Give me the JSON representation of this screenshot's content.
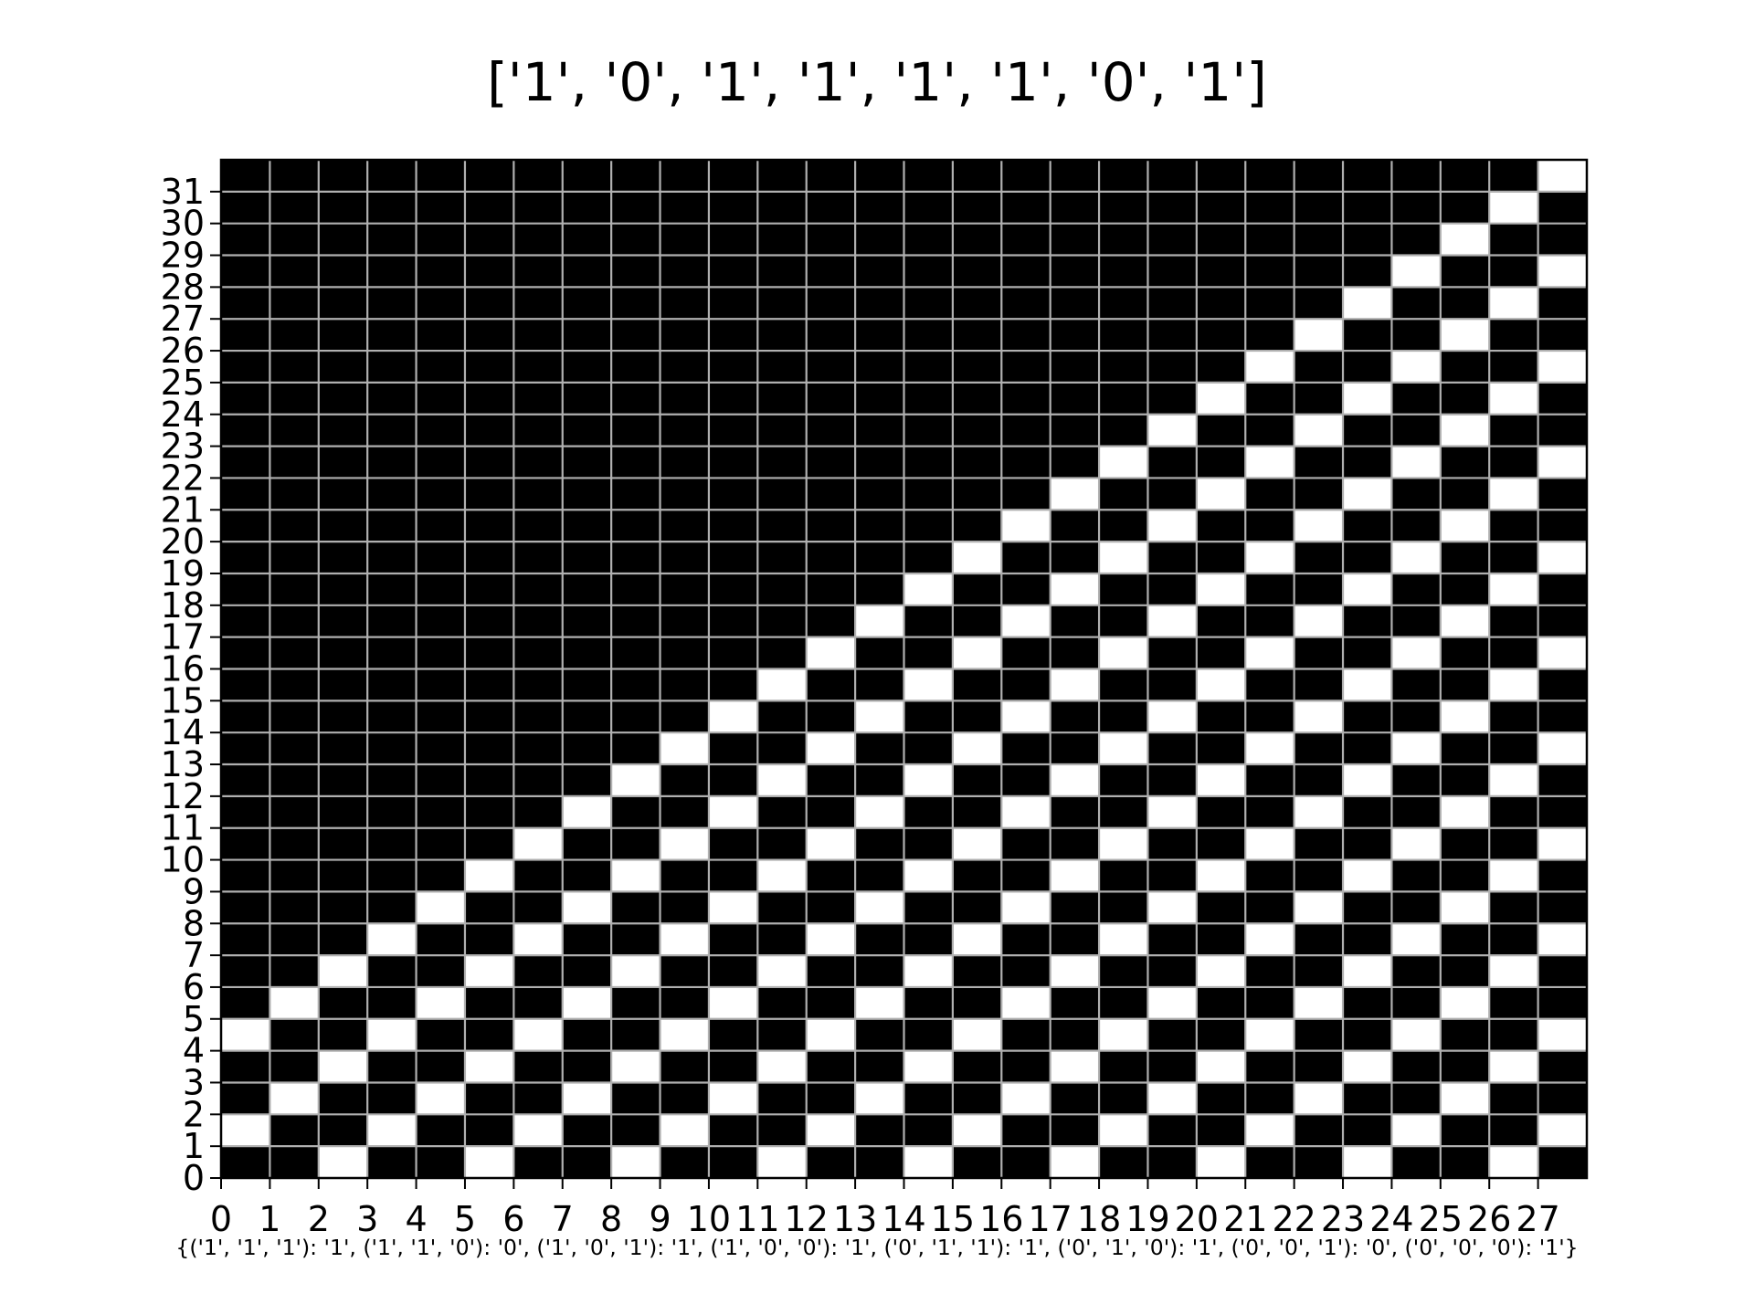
{
  "chart_data": {
    "type": "heatmap",
    "title": "['1', '0', '1', '1', '1', '1', '0', '1']",
    "xlabel": "",
    "ylabel": "",
    "caption": "{('1', '1', '1'): '1', ('1', '1', '0'): '0', ('1', '0', '1'): '1', ('1', '0', '0'): '1', ('0', '1', '1'): '1', ('0', '1', '0'): '1', ('0', '0', '1'): '0', ('0', '0', '0'): '1'}",
    "x_ticks": [
      "0",
      "1",
      "2",
      "3",
      "4",
      "5",
      "6",
      "7",
      "8",
      "9",
      "10",
      "11",
      "12",
      "13",
      "14",
      "15",
      "16",
      "17",
      "18",
      "19",
      "20",
      "21",
      "22",
      "23",
      "24",
      "25",
      "26",
      "27"
    ],
    "y_ticks": [
      "0",
      "1",
      "2",
      "3",
      "4",
      "5",
      "6",
      "7",
      "8",
      "9",
      "10",
      "11",
      "12",
      "13",
      "14",
      "15",
      "16",
      "17",
      "18",
      "19",
      "20",
      "21",
      "22",
      "23",
      "24",
      "25",
      "26",
      "27",
      "28",
      "29",
      "30",
      "31"
    ],
    "columns": 28,
    "rows": 32,
    "colors": {
      "one": "#000000",
      "zero": "#ffffff",
      "grid": "#b0b0b0"
    },
    "grid": true,
    "row_order": "top to bottom",
    "cells": [
      "1111111111111111111111111110",
      "1111111111111111111111111101",
      "1111111111111111111111111011",
      "1111111111111111111111110110",
      "1111111111111111111111101101",
      "1111111111111111111111011011",
      "1111111111111111111110110110",
      "1111111111111111111101101101",
      "1111111111111111111011011011",
      "1111111111111111110110110110",
      "1111111111111111101101101101",
      "1111111111111111011011011011",
      "1111111111111110110110110110",
      "1111111111111101101101101101",
      "1111111111111011011011011011",
      "1111111111110110110110110110",
      "1111111111101101101101101101",
      "1111111111011011011011011011",
      "1111111110110110110110110110",
      "1111111101101101101101101101",
      "1111111011011011011011011011",
      "1111110110110110110110110110",
      "1111101101101101101101101101",
      "1111011011011011011011011011",
      "1110110110110110110110110110",
      "1101101101101101101101101101",
      "1011011011011011011011011011",
      "0110110110110110110110110110",
      "1101101101101101101101101101",
      "1011011011011011011011011011",
      "0110110110110110110110110110",
      "1101101101101101101101101101"
    ]
  }
}
